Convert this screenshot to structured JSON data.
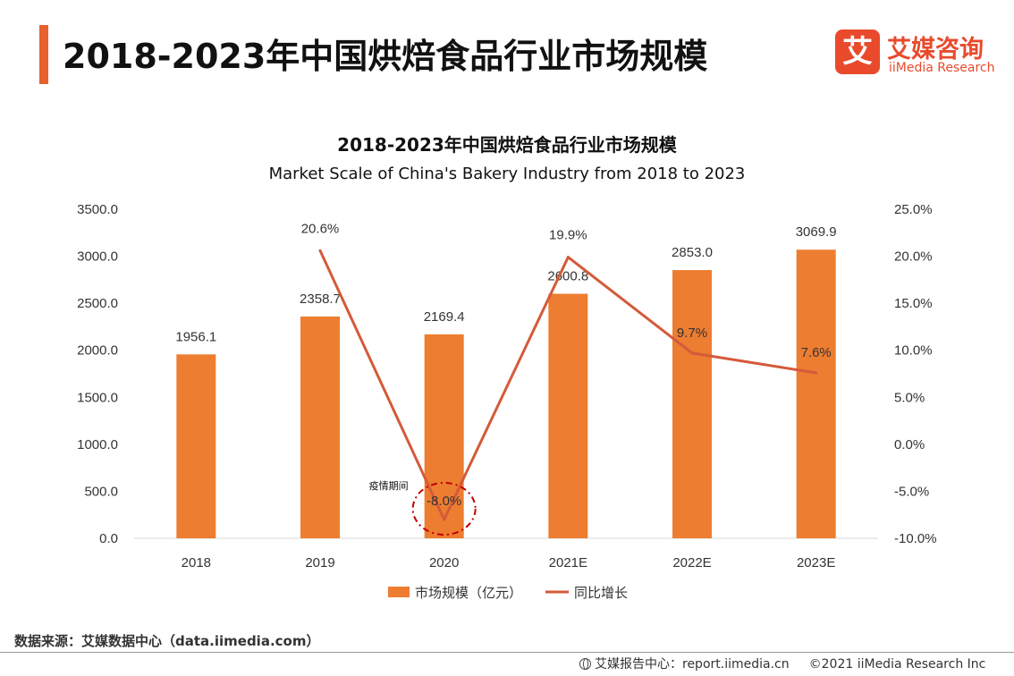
{
  "header": {
    "title": "2018-2023年中国烘焙食品行业市场规模",
    "brand_mark": "艾",
    "brand_cn": "艾媒咨询",
    "brand_en": "iiMedia Research"
  },
  "colors": {
    "accent": "#e8602c",
    "bar": "#ed7d31",
    "line": "#d45a3a",
    "brand": "#e94a2c",
    "annotation": "#c00000"
  },
  "chart_data": {
    "type": "bar",
    "title": "2018-2023年中国烘焙食品行业市场规模",
    "subtitle": "Market Scale of China's Bakery Industry from 2018 to 2023",
    "categories": [
      "2018",
      "2019",
      "2020",
      "2021E",
      "2022E",
      "2023E"
    ],
    "series": [
      {
        "name": "市场规模（亿元）",
        "type": "bar",
        "axis": "left",
        "values": [
          1956.1,
          2358.7,
          2169.4,
          2600.8,
          2853.0,
          3069.9
        ],
        "labels": [
          "1956.1",
          "2358.7",
          "2169.4",
          "2600.8",
          "2853.0",
          "3069.9"
        ]
      },
      {
        "name": "同比增长",
        "type": "line",
        "axis": "right",
        "values": [
          null,
          20.6,
          -8.0,
          19.9,
          9.7,
          7.6
        ],
        "labels": [
          "",
          "20.6%",
          "-8.0%",
          "19.9%",
          "9.7%",
          "7.6%"
        ]
      }
    ],
    "ylim_left": [
      0,
      3500
    ],
    "yticks_left": [
      "0.0",
      "500.0",
      "1000.0",
      "1500.0",
      "2000.0",
      "2500.0",
      "3000.0",
      "3500.0"
    ],
    "ylim_right": [
      -10,
      25
    ],
    "yticks_right": [
      "-10.0%",
      "-5.0%",
      "0.0%",
      "5.0%",
      "10.0%",
      "15.0%",
      "20.0%",
      "25.0%"
    ],
    "grid": false,
    "legend": "bottom",
    "annotation": {
      "text": "疫情期间",
      "category": "2020"
    }
  },
  "footer": {
    "source": "数据来源：艾媒数据中心（data.iimedia.com）",
    "report_center": "艾媒报告中心：report.iimedia.cn",
    "copyright": "©2021  iiMedia Research  Inc"
  }
}
